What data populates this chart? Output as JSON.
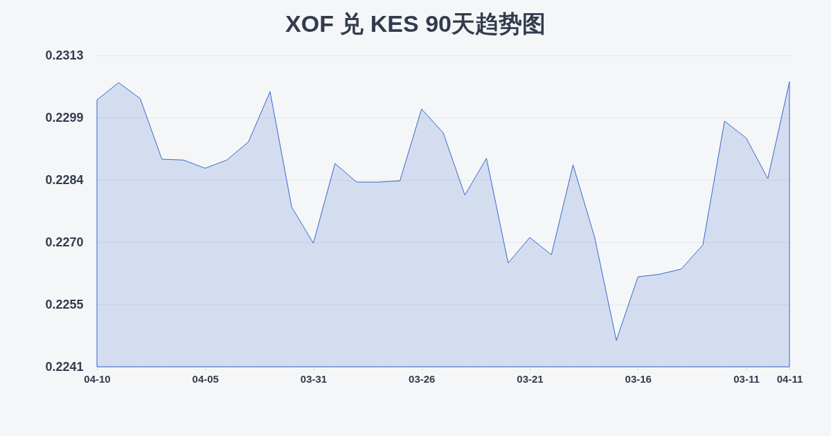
{
  "chart_data": {
    "type": "area",
    "title": "XOF 兑 KES 90天趋势图",
    "categories": [
      "04-10",
      null,
      null,
      null,
      null,
      "04-05",
      null,
      null,
      null,
      null,
      "03-31",
      null,
      null,
      null,
      null,
      "03-26",
      null,
      null,
      null,
      null,
      "03-21",
      null,
      null,
      null,
      null,
      "03-16",
      null,
      null,
      null,
      null,
      "03-11",
      null,
      "04-11"
    ],
    "series": [
      {
        "color": "#3366cc",
        "values": [
          0.23027,
          0.23067,
          0.2303,
          0.2289,
          0.22888,
          0.22869,
          0.22888,
          0.2293,
          0.23046,
          0.22779,
          0.22696,
          0.2288,
          0.22837,
          0.22837,
          0.2284,
          0.23006,
          0.22951,
          0.22807,
          0.22892,
          0.2265,
          0.22709,
          0.22669,
          0.22877,
          0.22709,
          0.22471,
          0.22618,
          0.22624,
          0.22636,
          0.22692,
          0.22978,
          0.22939,
          0.22845,
          0.23069
        ]
      }
    ],
    "ylim": [
      0.2241,
      0.2313
    ],
    "yticks": [
      0.2241,
      {
        "value": 0.22554,
        "label": "0.2255"
      },
      {
        "value": 0.22698,
        "label": "0.2270"
      },
      {
        "value": 0.22842,
        "label": "0.2284"
      },
      {
        "value": 0.22986,
        "label": "0.2299"
      },
      0.2313
    ],
    "grid": "y"
  }
}
